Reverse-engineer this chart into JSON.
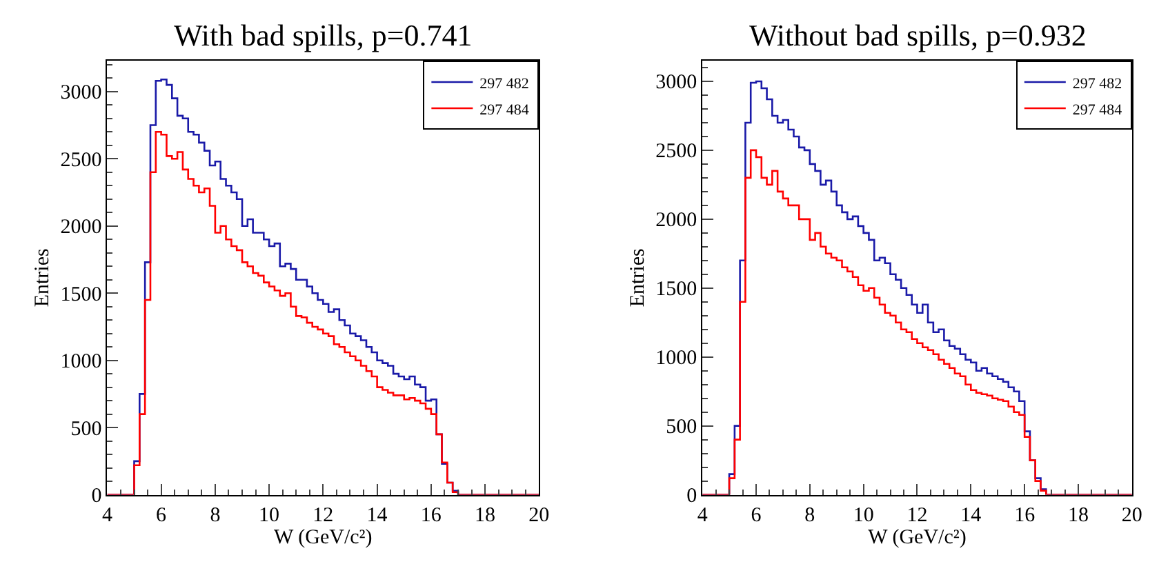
{
  "chart_data": [
    {
      "type": "histogram",
      "title": "With bad spills, p=0.741",
      "xlabel": "W (GeV/c²)",
      "ylabel": "Entries",
      "bins": [
        4.0,
        4.2,
        4.4,
        4.6,
        4.8,
        5.0,
        5.2,
        5.4,
        5.6,
        5.8,
        6.0,
        6.2,
        6.4,
        6.6,
        6.8,
        7.0,
        7.2,
        7.4,
        7.6,
        7.8,
        8.0,
        8.2,
        8.4,
        8.6,
        8.8,
        9.0,
        9.2,
        9.4,
        9.6,
        9.8,
        10.0,
        10.2,
        10.4,
        10.6,
        10.8,
        11.0,
        11.2,
        11.4,
        11.6,
        11.8,
        12.0,
        12.2,
        12.4,
        12.6,
        12.8,
        13.0,
        13.2,
        13.4,
        13.6,
        13.8,
        14.0,
        14.2,
        14.4,
        14.6,
        14.8,
        15.0,
        15.2,
        15.4,
        15.6,
        15.8,
        16.0,
        16.2,
        16.4,
        16.6,
        16.8,
        17.0,
        17.2,
        17.4,
        17.6,
        17.8,
        18.0,
        18.2,
        18.4,
        18.6,
        18.8,
        19.0,
        19.2,
        19.4,
        19.6,
        19.8,
        20.0
      ],
      "series": [
        {
          "name": "297 482",
          "color": "#1a1aa8",
          "values": [
            0,
            0,
            0,
            0,
            0,
            250,
            750,
            1730,
            2750,
            3080,
            3090,
            3050,
            2950,
            2820,
            2800,
            2700,
            2680,
            2620,
            2560,
            2450,
            2480,
            2350,
            2300,
            2250,
            2200,
            2000,
            2050,
            1950,
            1950,
            1900,
            1850,
            1870,
            1700,
            1720,
            1680,
            1600,
            1600,
            1550,
            1500,
            1450,
            1420,
            1360,
            1380,
            1300,
            1260,
            1200,
            1180,
            1150,
            1100,
            1060,
            1000,
            980,
            960,
            900,
            880,
            860,
            880,
            820,
            800,
            700,
            710,
            450,
            230,
            90,
            30,
            0,
            0,
            0,
            0,
            0,
            0,
            0,
            0,
            0,
            0,
            0,
            0,
            0,
            0,
            0
          ]
        },
        {
          "name": "297 484",
          "color": "#ff0000",
          "values": [
            0,
            0,
            0,
            0,
            0,
            220,
            600,
            1450,
            2400,
            2700,
            2680,
            2520,
            2500,
            2550,
            2420,
            2350,
            2300,
            2250,
            2280,
            2150,
            1950,
            2000,
            1900,
            1850,
            1820,
            1730,
            1700,
            1650,
            1630,
            1580,
            1550,
            1520,
            1480,
            1500,
            1400,
            1330,
            1320,
            1280,
            1250,
            1230,
            1200,
            1180,
            1120,
            1100,
            1060,
            1030,
            1000,
            960,
            920,
            880,
            800,
            780,
            760,
            740,
            740,
            710,
            720,
            700,
            680,
            640,
            600,
            450,
            240,
            90,
            20,
            0,
            0,
            0,
            0,
            0,
            0,
            0,
            0,
            0,
            0,
            0,
            0,
            0,
            0,
            0
          ]
        }
      ],
      "xlim": [
        4,
        20
      ],
      "xticks": [
        4,
        6,
        8,
        10,
        12,
        14,
        16,
        18,
        20
      ],
      "ylim": [
        0,
        3230
      ],
      "yticks": [
        0,
        500,
        1000,
        1500,
        2000,
        2500,
        3000
      ],
      "legend": "top right"
    },
    {
      "type": "histogram",
      "title": "Without bad spills, p=0.932",
      "xlabel": "W (GeV/c²)",
      "ylabel": "Entries",
      "bins": [
        4.0,
        4.2,
        4.4,
        4.6,
        4.8,
        5.0,
        5.2,
        5.4,
        5.6,
        5.8,
        6.0,
        6.2,
        6.4,
        6.6,
        6.8,
        7.0,
        7.2,
        7.4,
        7.6,
        7.8,
        8.0,
        8.2,
        8.4,
        8.6,
        8.8,
        9.0,
        9.2,
        9.4,
        9.6,
        9.8,
        10.0,
        10.2,
        10.4,
        10.6,
        10.8,
        11.0,
        11.2,
        11.4,
        11.6,
        11.8,
        12.0,
        12.2,
        12.4,
        12.6,
        12.8,
        13.0,
        13.2,
        13.4,
        13.6,
        13.8,
        14.0,
        14.2,
        14.4,
        14.6,
        14.8,
        15.0,
        15.2,
        15.4,
        15.6,
        15.8,
        16.0,
        16.2,
        16.4,
        16.6,
        16.8,
        17.0,
        17.2,
        17.4,
        17.6,
        17.8,
        18.0,
        18.2,
        18.4,
        18.6,
        18.8,
        19.0,
        19.2,
        19.4,
        19.6,
        19.8,
        20.0
      ],
      "series": [
        {
          "name": "297 482",
          "color": "#1a1aa8",
          "values": [
            0,
            0,
            0,
            0,
            0,
            150,
            500,
            1700,
            2700,
            2990,
            3000,
            2950,
            2870,
            2750,
            2700,
            2720,
            2650,
            2600,
            2520,
            2500,
            2400,
            2350,
            2250,
            2280,
            2200,
            2100,
            2050,
            2000,
            2020,
            1950,
            1900,
            1850,
            1700,
            1720,
            1680,
            1600,
            1560,
            1500,
            1450,
            1380,
            1320,
            1380,
            1250,
            1180,
            1200,
            1120,
            1080,
            1060,
            1020,
            980,
            960,
            900,
            920,
            880,
            860,
            840,
            820,
            780,
            750,
            680,
            460,
            250,
            120,
            40,
            0,
            0,
            0,
            0,
            0,
            0,
            0,
            0,
            0,
            0,
            0,
            0,
            0,
            0,
            0,
            0
          ]
        },
        {
          "name": "297 484",
          "color": "#ff0000",
          "values": [
            0,
            0,
            0,
            0,
            0,
            120,
            400,
            1400,
            2300,
            2500,
            2450,
            2300,
            2250,
            2350,
            2200,
            2150,
            2100,
            2100,
            2000,
            2000,
            1850,
            1900,
            1800,
            1750,
            1720,
            1700,
            1650,
            1620,
            1580,
            1520,
            1480,
            1500,
            1430,
            1380,
            1320,
            1300,
            1250,
            1200,
            1180,
            1130,
            1100,
            1070,
            1050,
            1020,
            980,
            950,
            920,
            880,
            860,
            800,
            760,
            740,
            730,
            720,
            700,
            690,
            680,
            640,
            600,
            580,
            420,
            250,
            100,
            30,
            0,
            0,
            0,
            0,
            0,
            0,
            0,
            0,
            0,
            0,
            0,
            0,
            0,
            0,
            0,
            0
          ]
        }
      ],
      "xlim": [
        4,
        20
      ],
      "xticks": [
        4,
        6,
        8,
        10,
        12,
        14,
        16,
        18,
        20
      ],
      "ylim": [
        0,
        3150
      ],
      "yticks": [
        0,
        500,
        1000,
        1500,
        2000,
        2500,
        3000
      ],
      "legend": "top right"
    }
  ]
}
